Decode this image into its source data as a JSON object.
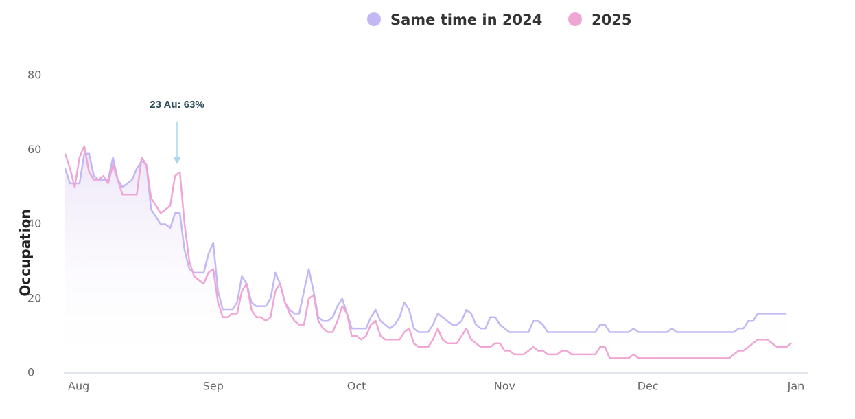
{
  "chart_data": {
    "type": "line",
    "y_label": "Occupation",
    "annotation": "23 Au: 63%",
    "categories": [
      "Aug",
      null,
      null,
      null,
      null,
      null,
      null,
      null,
      null,
      null,
      null,
      null,
      null,
      null,
      null,
      null,
      null,
      null,
      null,
      null,
      null,
      null,
      null,
      null,
      null,
      null,
      null,
      null,
      null,
      null,
      null,
      "Sep",
      null,
      null,
      null,
      null,
      null,
      null,
      null,
      null,
      null,
      null,
      null,
      null,
      null,
      null,
      null,
      null,
      null,
      null,
      null,
      null,
      null,
      null,
      null,
      null,
      null,
      null,
      null,
      null,
      null,
      "Oct",
      null,
      null,
      null,
      null,
      null,
      null,
      null,
      null,
      null,
      null,
      null,
      null,
      null,
      null,
      null,
      null,
      null,
      null,
      null,
      null,
      null,
      null,
      null,
      null,
      null,
      null,
      null,
      null,
      null,
      null,
      "Nov",
      null,
      null,
      null,
      null,
      null,
      null,
      null,
      null,
      null,
      null,
      null,
      null,
      null,
      null,
      null,
      null,
      null,
      null,
      null,
      null,
      null,
      null,
      null,
      null,
      null,
      null,
      null,
      null,
      null,
      "Dec",
      null,
      null,
      null,
      null,
      null,
      null,
      null,
      null,
      null,
      null,
      null,
      null,
      null,
      null,
      null,
      null,
      null,
      null,
      null,
      null,
      null,
      null,
      null,
      null,
      null,
      null,
      null,
      null,
      null,
      null,
      "Jan"
    ],
    "series": [
      {
        "name": "Same time in 2024",
        "color": "#c3b8f5",
        "values": [
          55,
          51,
          51,
          51,
          59,
          59,
          53,
          52,
          52,
          52,
          58,
          52,
          50,
          51,
          52,
          55,
          57,
          56,
          44,
          42,
          40,
          40,
          39,
          43,
          43,
          33,
          28,
          27,
          27,
          27,
          32,
          35,
          22,
          17,
          17,
          17,
          19,
          26,
          24,
          19,
          18,
          18,
          18,
          20,
          27,
          24,
          19,
          17,
          16,
          16,
          22,
          28,
          22,
          15,
          14,
          14,
          15,
          18,
          20,
          16,
          12,
          12,
          12,
          12,
          15,
          17,
          14,
          13,
          12,
          13,
          15,
          19,
          17,
          12,
          11,
          11,
          11,
          13,
          16,
          15,
          14,
          13,
          13,
          14,
          17,
          16,
          13,
          12,
          12,
          15,
          15,
          13,
          12,
          11,
          11,
          11,
          11,
          11,
          14,
          14,
          13,
          11,
          11,
          11,
          11,
          11,
          11,
          11,
          11,
          11,
          11,
          11,
          13,
          13,
          11,
          11,
          11,
          11,
          11,
          12,
          11,
          11,
          11,
          11,
          11,
          11,
          11,
          12,
          11,
          11,
          11,
          11,
          11,
          11,
          11,
          11,
          11,
          11,
          11,
          11,
          11,
          12,
          12,
          14,
          14,
          16,
          16,
          16,
          16,
          16,
          16,
          16,
          null,
          null
        ]
      },
      {
        "name": "2025",
        "color": "#f0a6d4",
        "values": [
          59,
          55,
          50,
          58,
          61,
          54,
          52,
          52,
          53,
          51,
          56,
          52,
          48,
          48,
          48,
          48,
          58,
          56,
          47,
          45,
          43,
          44,
          45,
          53,
          54,
          40,
          30,
          26,
          25,
          24,
          27,
          28,
          19,
          15,
          15,
          16,
          16,
          22,
          24,
          17,
          15,
          15,
          14,
          15,
          22,
          24,
          19,
          16,
          14,
          13,
          13,
          20,
          21,
          14,
          12,
          11,
          11,
          14,
          18,
          16,
          10,
          10,
          9,
          10,
          13,
          14,
          10,
          9,
          9,
          9,
          9,
          11,
          12,
          8,
          7,
          7,
          7,
          9,
          12,
          9,
          8,
          8,
          8,
          10,
          12,
          9,
          8,
          7,
          7,
          7,
          8,
          8,
          6,
          6,
          5,
          5,
          5,
          6,
          7,
          6,
          6,
          5,
          5,
          5,
          6,
          6,
          5,
          5,
          5,
          5,
          5,
          5,
          7,
          7,
          4,
          4,
          4,
          4,
          4,
          5,
          4,
          4,
          4,
          4,
          4,
          4,
          4,
          4,
          4,
          4,
          4,
          4,
          4,
          4,
          4,
          4,
          4,
          4,
          4,
          4,
          5,
          6,
          6,
          7,
          8,
          9,
          9,
          9,
          8,
          7,
          7,
          7,
          8,
          null
        ]
      }
    ],
    "ylim": [
      0,
      80
    ],
    "yticks": [
      0,
      20,
      40,
      60,
      80
    ],
    "grid": false,
    "legend": "top"
  }
}
